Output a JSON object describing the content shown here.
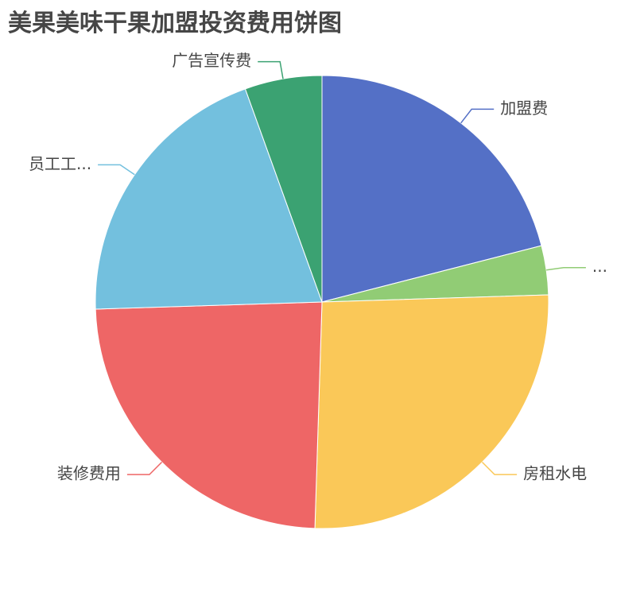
{
  "chart_data": {
    "type": "pie",
    "title": "美果美味干果加盟投资费用饼图",
    "slices": [
      {
        "label": "加盟费",
        "value": 21.0,
        "color": "#5470c6"
      },
      {
        "label": "...",
        "value": 3.5,
        "color": "#91cc75"
      },
      {
        "label": "房租水电",
        "value": 26.0,
        "color": "#fac858"
      },
      {
        "label": "装修费用",
        "value": 24.0,
        "color": "#ee6666"
      },
      {
        "label": "员工工...",
        "value": 20.0,
        "color": "#73c0de"
      },
      {
        "label": "广告宣传费",
        "value": 5.5,
        "color": "#3ba272"
      }
    ],
    "start_angle": "12 o'clock, clockwise",
    "legend": "none"
  }
}
